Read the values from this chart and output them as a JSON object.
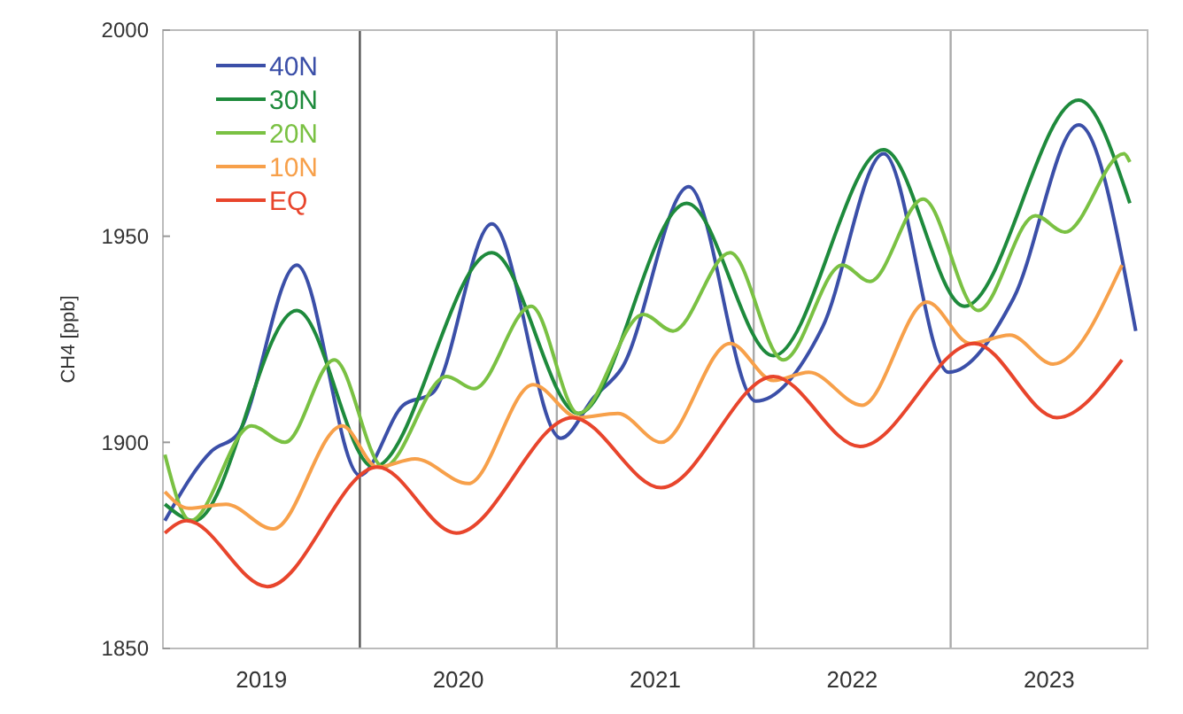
{
  "chart_data": {
    "type": "line",
    "ylabel": "CH4 [ppb]",
    "xlim": [
      2019,
      2024
    ],
    "ylim": [
      1850,
      2000
    ],
    "yticks": [
      1850,
      1900,
      1950,
      2000
    ],
    "xticks": [
      {
        "value": 2019.5,
        "label": "2019"
      },
      {
        "value": 2020.5,
        "label": "2020"
      },
      {
        "value": 2021.5,
        "label": "2021"
      },
      {
        "value": 2022.5,
        "label": "2022"
      },
      {
        "value": 2023.5,
        "label": "2023"
      }
    ],
    "ref_lines": [
      {
        "axis": "x",
        "value": 2020,
        "color": "#555555"
      },
      {
        "axis": "x",
        "value": 2021,
        "color": "#aaaaaa"
      },
      {
        "axis": "x",
        "value": 2022,
        "color": "#aaaaaa"
      },
      {
        "axis": "x",
        "value": 2023,
        "color": "#aaaaaa"
      }
    ],
    "grid": false,
    "legend": "top left",
    "marker": "none",
    "line_style": "solid",
    "series": [
      {
        "name": "40N",
        "color": "#3b4fa8",
        "x": [
          2019.01,
          2019.25,
          2019.38,
          2019.68,
          2020.0,
          2020.22,
          2020.37,
          2020.67,
          2021.02,
          2021.19,
          2021.33,
          2021.67,
          2022.01,
          2022.35,
          2022.66,
          2022.99,
          2023.32,
          2023.65,
          2023.94
        ],
        "values": [
          1881,
          1898,
          1902,
          1943,
          1892,
          1909,
          1912,
          1953,
          1901,
          1911,
          1918,
          1962,
          1910,
          1928,
          1970,
          1917,
          1935,
          1977,
          1927
        ]
      },
      {
        "name": "30N",
        "color": "#1e8a3c",
        "x": [
          2019.01,
          2019.16,
          2019.68,
          2020.07,
          2020.67,
          2021.11,
          2021.66,
          2022.1,
          2022.66,
          2023.07,
          2023.65,
          2023.91
        ],
        "values": [
          1885,
          1881,
          1932,
          1894,
          1946,
          1907,
          1958,
          1921,
          1971,
          1933,
          1983,
          1958
        ]
      },
      {
        "name": "20N",
        "color": "#7ac143",
        "x": [
          2019.01,
          2019.14,
          2019.45,
          2019.62,
          2019.87,
          2020.12,
          2020.44,
          2020.58,
          2020.87,
          2021.11,
          2021.44,
          2021.59,
          2021.88,
          2022.15,
          2022.45,
          2022.59,
          2022.86,
          2023.14,
          2023.43,
          2023.58,
          2023.88,
          2023.91
        ],
        "values": [
          1897,
          1881,
          1904,
          1900,
          1920,
          1894,
          1916,
          1913,
          1933,
          1907,
          1931,
          1927,
          1946,
          1920,
          1943,
          1939,
          1959,
          1932,
          1955,
          1951,
          1970,
          1968
        ]
      },
      {
        "name": "10N",
        "color": "#f7a04a",
        "x": [
          2019.01,
          2019.13,
          2019.32,
          2019.56,
          2019.91,
          2020.09,
          2020.28,
          2020.55,
          2020.88,
          2021.11,
          2021.31,
          2021.53,
          2021.88,
          2022.1,
          2022.28,
          2022.55,
          2022.88,
          2023.1,
          2023.3,
          2023.52,
          2023.87
        ],
        "values": [
          1888,
          1884,
          1885,
          1879,
          1904,
          1894,
          1896,
          1890,
          1914,
          1906,
          1907,
          1900,
          1924,
          1915,
          1917,
          1909,
          1934,
          1924,
          1926,
          1919,
          1943
        ]
      },
      {
        "name": "EQ",
        "color": "#e8452c",
        "x": [
          2019.01,
          2019.12,
          2019.53,
          2020.09,
          2020.49,
          2021.08,
          2021.53,
          2022.1,
          2022.54,
          2023.12,
          2023.54,
          2023.87
        ],
        "values": [
          1878,
          1881,
          1865,
          1894,
          1878,
          1906,
          1889,
          1916,
          1899,
          1924,
          1906,
          1920
        ]
      }
    ]
  }
}
